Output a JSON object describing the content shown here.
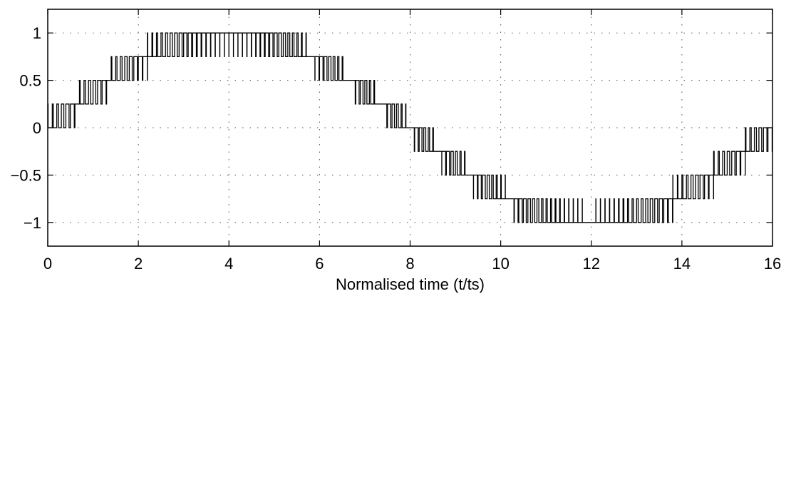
{
  "chart_data": {
    "type": "line",
    "title": "",
    "xlabel": "Normalised time (t/ts)",
    "ylabel": "",
    "xlim": [
      0,
      16
    ],
    "ylim": [
      -1.25,
      1.25
    ],
    "xticks": [
      0,
      2,
      4,
      6,
      8,
      10,
      12,
      14,
      16
    ],
    "xtick_labels": [
      "0",
      "2",
      "4",
      "6",
      "8",
      "10",
      "12",
      "14",
      "16"
    ],
    "yticks": [
      1,
      0.5,
      0,
      -0.5,
      -1
    ],
    "ytick_labels": [
      "1",
      "0.5",
      "0",
      "−0.5",
      "−1"
    ],
    "grid": "dotted",
    "quantization_step": 0.25,
    "signal_description": "PWM-dithered quantized sine wave, period 16, amplitude 1, switching between adjacent 0.25 levels",
    "reference": {
      "name": "",
      "x": [
        0,
        0.5,
        1,
        1.5,
        2,
        2.5,
        3,
        3.5,
        4,
        4.5,
        5,
        5.5,
        6,
        6.5,
        7,
        7.5,
        8,
        8.5,
        9,
        9.5,
        10,
        10.5,
        11,
        11.5,
        12,
        12.5,
        13,
        13.5,
        14,
        14.5,
        15,
        15.5,
        16
      ],
      "y": [
        0,
        0.195,
        0.383,
        0.556,
        0.707,
        0.831,
        0.924,
        0.981,
        1,
        0.981,
        0.924,
        0.831,
        0.707,
        0.556,
        0.383,
        0.195,
        0,
        -0.195,
        -0.383,
        -0.556,
        -0.707,
        -0.831,
        -0.924,
        -0.981,
        -1,
        -0.981,
        -0.924,
        -0.831,
        -0.707,
        -0.556,
        -0.383,
        -0.195,
        0
      ]
    },
    "pwm_period": 0.1
  }
}
